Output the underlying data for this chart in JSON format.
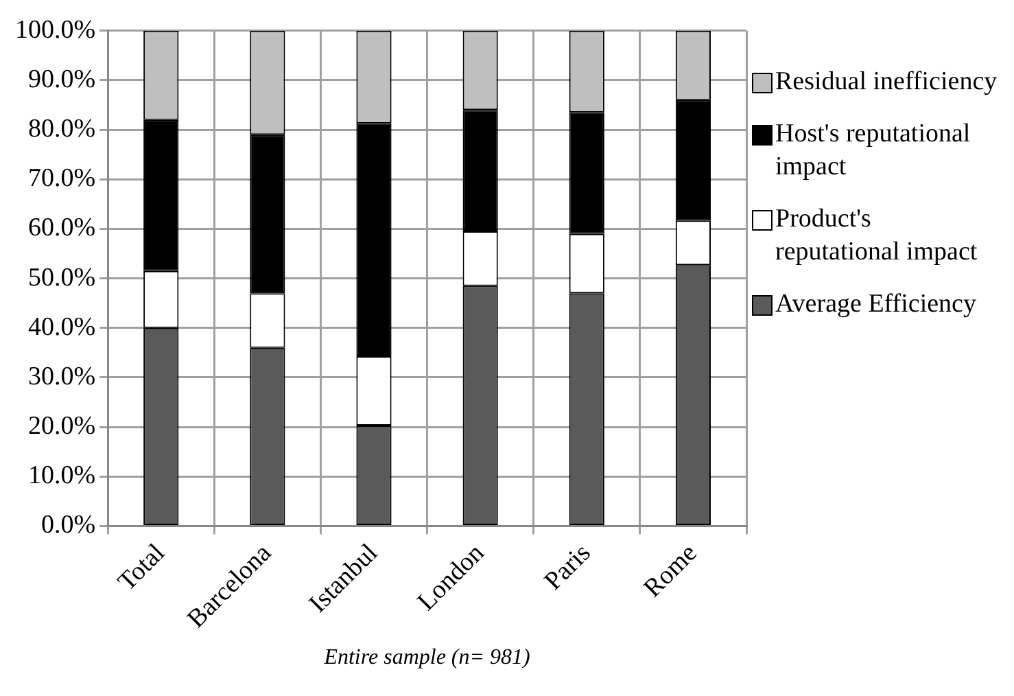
{
  "chart_data": {
    "type": "bar",
    "xlabel": "Entire sample (n= 981)",
    "categories": [
      "Total",
      "Barcelona",
      "Istanbul",
      "London",
      "Paris",
      "Rome"
    ],
    "stacked": true,
    "ylim": [
      0,
      100
    ],
    "yticks": [
      {
        "value": 0,
        "label": "0.0%"
      },
      {
        "value": 10,
        "label": "10.0%"
      },
      {
        "value": 20,
        "label": "20.0%"
      },
      {
        "value": 30,
        "label": "30.0%"
      },
      {
        "value": 40,
        "label": "40.0%"
      },
      {
        "value": 50,
        "label": "50.0%"
      },
      {
        "value": 60,
        "label": "60.0%"
      },
      {
        "value": 70,
        "label": "70.0%"
      },
      {
        "value": 80,
        "label": "80.0%"
      },
      {
        "value": 90,
        "label": "90.0%"
      },
      {
        "value": 100,
        "label": "100.0%"
      }
    ],
    "grid": true,
    "legend": "right",
    "series": [
      {
        "name": "Average Efficiency",
        "color": "#5a5a5a",
        "values": [
          40,
          36,
          20.3,
          48.5,
          47,
          52.7
        ]
      },
      {
        "name": "Product's reputational impact",
        "color": "#ffffff",
        "values": [
          11.5,
          11,
          14,
          11,
          12,
          9
        ]
      },
      {
        "name": "Host's reputational impact",
        "color": "#000000",
        "values": [
          30.5,
          32,
          47,
          24.5,
          24.5,
          24.3
        ]
      },
      {
        "name": "Residual inefficiency",
        "color": "#bfbfbf",
        "values": [
          18,
          21,
          18.7,
          16,
          16.5,
          14
        ]
      }
    ]
  }
}
